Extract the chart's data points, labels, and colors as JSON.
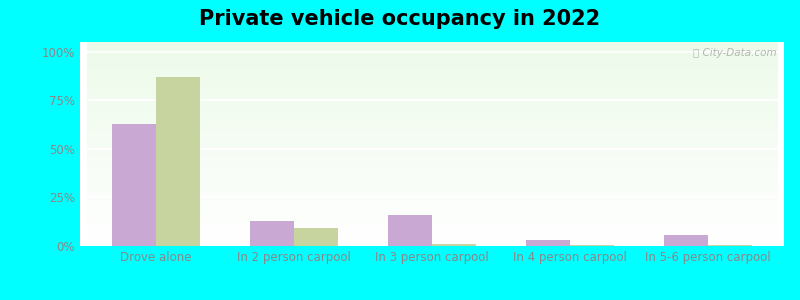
{
  "title": "Private vehicle occupancy in 2022",
  "categories": [
    "Drove alone",
    "In 2 person carpool",
    "In 3 person carpool",
    "In 4 person carpool",
    "In 5-6 person carpool"
  ],
  "dade_city_north": [
    0.63,
    0.13,
    0.16,
    0.03,
    0.055
  ],
  "florida": [
    0.87,
    0.095,
    0.012,
    0.006,
    0.004
  ],
  "dade_color": "#c9a8d4",
  "florida_color": "#c8d4a0",
  "title_fontsize": 15,
  "tick_fontsize": 8.5,
  "legend_fontsize": 10,
  "ylabel_ticks": [
    0,
    0.25,
    0.5,
    0.75,
    1.0
  ],
  "ylabel_labels": [
    "0%",
    "25%",
    "50%",
    "75%",
    "100%"
  ],
  "outer_bg": "#00ffff",
  "bar_width": 0.32
}
